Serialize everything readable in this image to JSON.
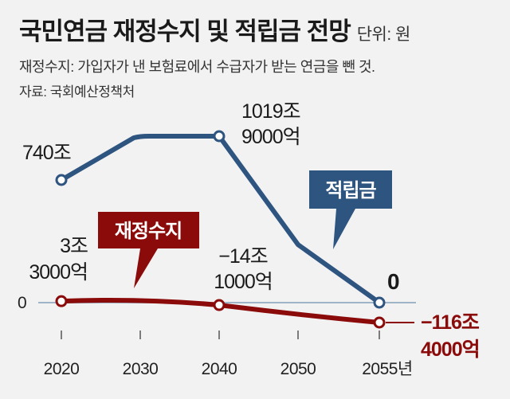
{
  "header": {
    "title": "국민연금 재정수지 및 적립금 전망",
    "unit": "단위: 원",
    "definition": "재정수지: 가입자가 낸 보험료에서 수급자가 받는 연금을 뺀 것.",
    "source": "자료: 국회예산정책처"
  },
  "colors": {
    "fund": "#2e5480",
    "balance": "#8b0a0a",
    "baseline": "#9fb4c6",
    "background": "#f2f2f2"
  },
  "chart_data": {
    "type": "line",
    "x": [
      2020,
      2030,
      2040,
      2050,
      2055
    ],
    "x_tick_labels": [
      "2020",
      "2030",
      "2040",
      "2050",
      "2055년"
    ],
    "y_tick_labels": [
      "0"
    ],
    "series": [
      {
        "name": "적립금",
        "values": [
          740,
          1019.9,
          1019.9,
          350,
          0
        ],
        "unit": "조원",
        "markers_at": [
          2020,
          2040,
          2055
        ]
      },
      {
        "name": "재정수지",
        "values": [
          3.3,
          5,
          -14.1,
          -90,
          -116.4
        ],
        "unit": "조원",
        "markers_at": [
          2020,
          2040,
          2055
        ]
      }
    ],
    "annotations": [
      {
        "series": "적립금",
        "x": 2020,
        "lines": [
          "740조"
        ]
      },
      {
        "series": "적립금",
        "x": 2040,
        "lines": [
          "1019조",
          "9000억"
        ]
      },
      {
        "series": "적립금",
        "x": 2055,
        "lines": [
          "0"
        ]
      },
      {
        "series": "재정수지",
        "x": 2020,
        "lines": [
          "3조",
          "3000억"
        ]
      },
      {
        "series": "재정수지",
        "x": 2040,
        "lines": [
          "−14조",
          "1000억"
        ]
      },
      {
        "series": "재정수지",
        "x": 2055,
        "lines": [
          "−116조",
          "4000억"
        ]
      }
    ],
    "legend_callouts": [
      "적립금",
      "재정수지"
    ],
    "grid": false
  }
}
